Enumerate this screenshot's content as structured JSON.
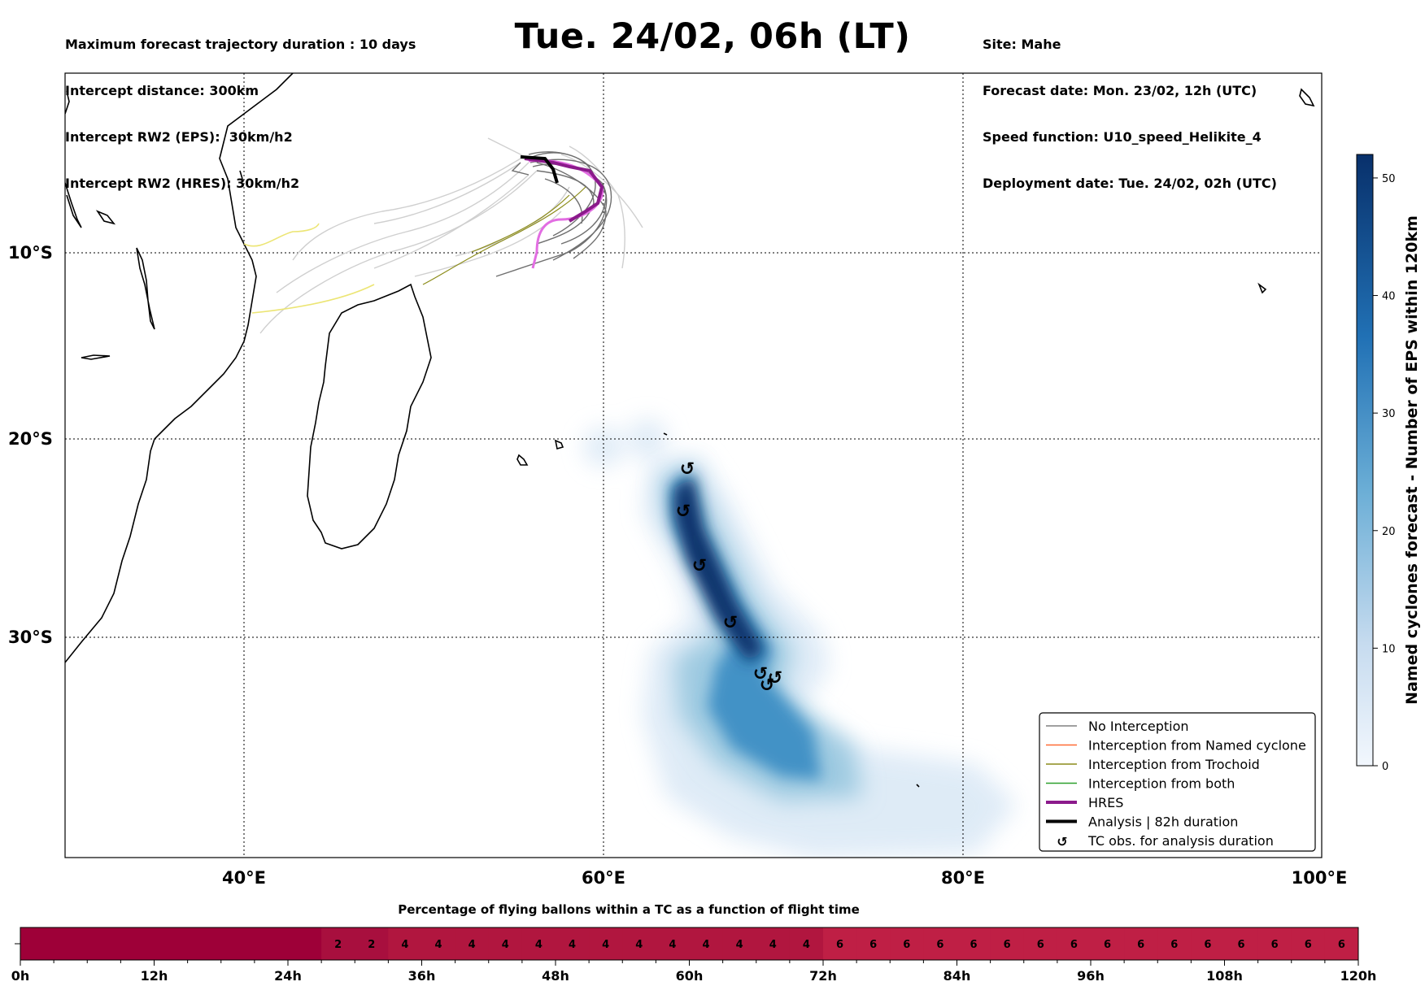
{
  "header_left": [
    "Maximum forecast trajectory duration : 10 days",
    "Intercept distance: 300km",
    "Intercept RW2 (EPS):  30km/h2",
    "Intercept RW2 (HRES): 30km/h2"
  ],
  "header_right": [
    "Site: Mahe",
    "Forecast date: Mon. 23/02, 12h (UTC)",
    "Speed function: U10_speed_Helikite_4",
    "Deployment date: Tue. 24/02, 02h (UTC)"
  ],
  "title": "Tue. 24/02, 06h (LT)",
  "map": {
    "lon_ticks": [
      "40°E",
      "60°E",
      "80°E",
      "100°E"
    ],
    "lat_ticks": [
      "10°S",
      "20°S",
      "30°S"
    ],
    "legend": [
      {
        "label": "No Interception",
        "color": "#808080",
        "style": "line"
      },
      {
        "label": "Interception from Named cyclone",
        "color": "#ff6a33",
        "style": "line"
      },
      {
        "label": "Interception from Trochoid",
        "color": "#8c8c1a",
        "style": "line"
      },
      {
        "label": "Interception from both",
        "color": "#2ca02c",
        "style": "line"
      },
      {
        "label": "HRES",
        "color": "#8b1a8b",
        "style": "thick"
      },
      {
        "label": "Analysis | 82h duration",
        "color": "#000000",
        "style": "thick"
      },
      {
        "label": "TC obs. for analysis duration",
        "color": "#000000",
        "style": "symbol"
      }
    ],
    "tc_symbol": "↺"
  },
  "colorbar": {
    "label": "Named cyclones forecast - Number of EPS within 120km",
    "ticks": [
      "0",
      "10",
      "20",
      "30",
      "40",
      "50"
    ],
    "max": 52,
    "color_low": "#eef4fb",
    "color_high": "#08306b"
  },
  "chart_data": {
    "type": "heatmap",
    "title": "Percentage of flying ballons within a TC as a function of flight time",
    "x_tick_labels": [
      "0h",
      "12h",
      "24h",
      "36h",
      "48h",
      "60h",
      "72h",
      "84h",
      "96h",
      "108h",
      "120h"
    ],
    "x_range": [
      0,
      120
    ],
    "cell_hours": 3,
    "cells": [
      {
        "from": 0,
        "to": 27,
        "value": null
      },
      {
        "from": 27,
        "to": 30,
        "value": 2
      },
      {
        "from": 30,
        "to": 33,
        "value": 2
      },
      {
        "from": 33,
        "to": 36,
        "value": 4
      },
      {
        "from": 36,
        "to": 39,
        "value": 4
      },
      {
        "from": 39,
        "to": 42,
        "value": 4
      },
      {
        "from": 42,
        "to": 45,
        "value": 4
      },
      {
        "from": 45,
        "to": 48,
        "value": 4
      },
      {
        "from": 48,
        "to": 51,
        "value": 4
      },
      {
        "from": 51,
        "to": 54,
        "value": 4
      },
      {
        "from": 54,
        "to": 57,
        "value": 4
      },
      {
        "from": 57,
        "to": 60,
        "value": 4
      },
      {
        "from": 60,
        "to": 63,
        "value": 4
      },
      {
        "from": 63,
        "to": 66,
        "value": 4
      },
      {
        "from": 66,
        "to": 69,
        "value": 4
      },
      {
        "from": 69,
        "to": 72,
        "value": 4
      },
      {
        "from": 72,
        "to": 75,
        "value": 6
      },
      {
        "from": 75,
        "to": 78,
        "value": 6
      },
      {
        "from": 78,
        "to": 81,
        "value": 6
      },
      {
        "from": 81,
        "to": 84,
        "value": 6
      },
      {
        "from": 84,
        "to": 87,
        "value": 6
      },
      {
        "from": 87,
        "to": 90,
        "value": 6
      },
      {
        "from": 90,
        "to": 93,
        "value": 6
      },
      {
        "from": 93,
        "to": 96,
        "value": 6
      },
      {
        "from": 96,
        "to": 99,
        "value": 6
      },
      {
        "from": 99,
        "to": 102,
        "value": 6
      },
      {
        "from": 102,
        "to": 105,
        "value": 6
      },
      {
        "from": 105,
        "to": 108,
        "value": 6
      },
      {
        "from": 108,
        "to": 111,
        "value": 6
      },
      {
        "from": 111,
        "to": 114,
        "value": 6
      },
      {
        "from": 114,
        "to": 117,
        "value": 6
      },
      {
        "from": 117,
        "to": 120,
        "value": 6
      }
    ],
    "colors": {
      "null": "#9e0038",
      "2": "#a80f3e",
      "4": "#b1163f",
      "6": "#bf1f45"
    }
  }
}
